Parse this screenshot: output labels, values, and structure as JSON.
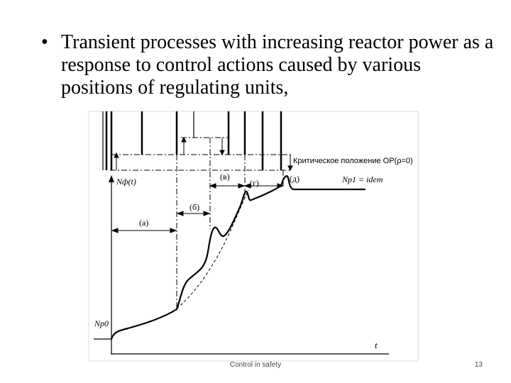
{
  "slide": {
    "bullet_symbol": "•",
    "bullet_text": "Transient processes with increasing reactor power as a response to control actions caused by various positions of regulating units,"
  },
  "figure": {
    "critical_position_label": "Критическое положение ОР(ρ=0)",
    "y_axis_label": "Nф(t)",
    "x_axis_label": "t",
    "initial_level_label": "Nр0",
    "final_level_label": "Nр1 = idem",
    "interval_labels": [
      "(а)",
      "(б)",
      "(в)",
      "(г)",
      "(д)"
    ]
  },
  "footer": {
    "center_text": "Control in safety",
    "page_number": "13"
  }
}
